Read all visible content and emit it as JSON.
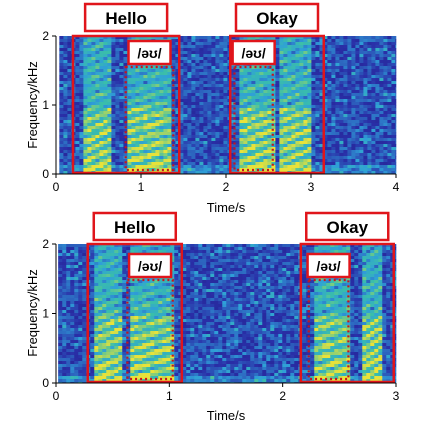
{
  "colors": {
    "highlight": "#e0151b",
    "spectro_low": "#2a2fa8",
    "spectro_mid": "#2f9fd8",
    "spectro_high": "#e8e23a"
  },
  "chart_data": [
    {
      "type": "heatmap",
      "xlabel": "Time/s",
      "ylabel": "Frequency/kHz",
      "xlim": [
        0,
        4
      ],
      "ylim": [
        0,
        2
      ],
      "xticks": [
        "0",
        "1",
        "2",
        "3",
        "4"
      ],
      "yticks": [
        "0",
        "1",
        "2"
      ],
      "spectrogram_span": [
        0.04,
        4.0
      ],
      "words": [
        {
          "label": "Hello",
          "start": 0.2,
          "end": 1.45
        },
        {
          "label": "Okay",
          "start": 2.05,
          "end": 3.15
        }
      ],
      "phonemes": [
        {
          "label": "/əʊ/",
          "start": 0.82,
          "end": 1.38
        },
        {
          "label": "/əʊ/",
          "start": 2.1,
          "end": 2.55
        }
      ],
      "energy_segments": [
        {
          "start": 0.32,
          "end": 0.62
        },
        {
          "start": 0.82,
          "end": 1.35
        },
        {
          "start": 2.15,
          "end": 2.55
        },
        {
          "start": 2.62,
          "end": 2.98
        }
      ]
    },
    {
      "type": "heatmap",
      "xlabel": "Time/s",
      "ylabel": "Frequency/kHz",
      "xlim": [
        0,
        3
      ],
      "ylim": [
        0,
        2
      ],
      "xticks": [
        "0",
        "1",
        "2",
        "3"
      ],
      "yticks": [
        "0",
        "1",
        "2"
      ],
      "spectrogram_span": [
        0.02,
        3.0
      ],
      "words": [
        {
          "label": "Hello",
          "start": 0.28,
          "end": 1.11
        },
        {
          "label": "Okay",
          "start": 2.16,
          "end": 2.98
        }
      ],
      "phonemes": [
        {
          "label": "/əʊ/",
          "start": 0.63,
          "end": 1.03
        },
        {
          "label": "/əʊ/",
          "start": 2.23,
          "end": 2.58
        }
      ],
      "energy_segments": [
        {
          "start": 0.32,
          "end": 0.58
        },
        {
          "start": 0.63,
          "end": 1.02
        },
        {
          "start": 2.26,
          "end": 2.58
        },
        {
          "start": 2.68,
          "end": 2.85
        }
      ]
    }
  ]
}
